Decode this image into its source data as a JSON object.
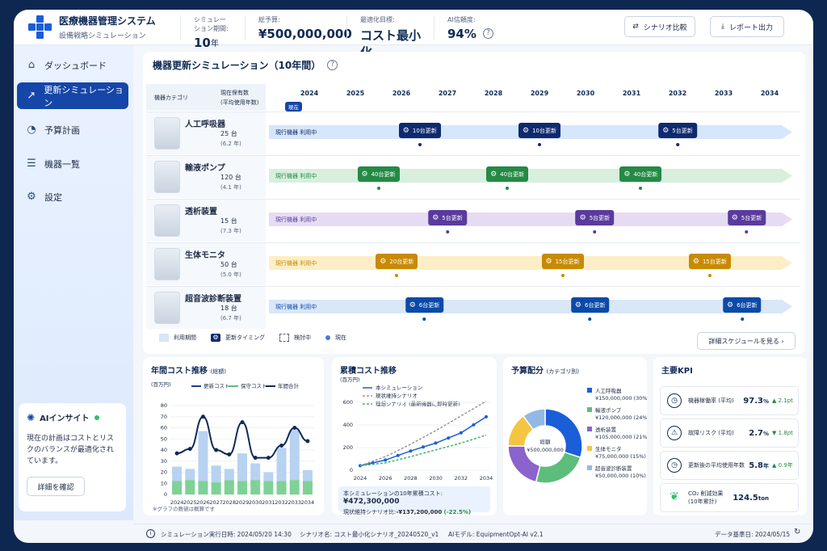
{
  "header": {
    "app_title": "医療機器管理システム",
    "app_subtitle": "設備戦略シミュレーション",
    "stats": [
      {
        "label": "シミュレーション期間:",
        "value": "10",
        "unit": "年"
      },
      {
        "label": "総予算:",
        "value": "¥500,000,000"
      },
      {
        "label": "最適化目標:",
        "value": "コスト最小化"
      },
      {
        "label": "AI信頼度:",
        "value": "94%"
      }
    ],
    "compare_label": "シナリオ比較",
    "report_label": "レポート出力"
  },
  "sidebar": {
    "items": [
      {
        "label": "ダッシュボード",
        "icon": "home-icon"
      },
      {
        "label": "更新シミュレーション",
        "icon": "chart-line-icon",
        "active": true
      },
      {
        "label": "予算計画",
        "icon": "pie-icon"
      },
      {
        "label": "機器一覧",
        "icon": "list-icon"
      },
      {
        "label": "設定",
        "icon": "gear-icon"
      }
    ],
    "ai": {
      "title": "AIインサイト",
      "body": "現在の計画はコストとリスクのバランスが最適化されています。",
      "button": "詳細を確認"
    }
  },
  "timeline": {
    "title": "機器更新シミュレーション（10年間）",
    "col_category": "機器カテゴリ",
    "col_count": "現在保有数",
    "col_count_sub": "(平均使用年数)",
    "years": [
      "2024",
      "2025",
      "2026",
      "2027",
      "2028",
      "2029",
      "2030",
      "2031",
      "2032",
      "2033",
      "2034"
    ],
    "now_label": "現在",
    "bar_label": "現行機器  利用中",
    "rows": [
      {
        "name": "人工呼吸器",
        "count": "25  台",
        "avg": "(6.2 年)",
        "color": "#0f2a6e",
        "bar": "#d6e6fb",
        "events": [
          {
            "label": "10台更新",
            "year": 2026.4
          },
          {
            "label": "10台更新",
            "year": 2029
          },
          {
            "label": "5台更新",
            "year": 2032
          }
        ]
      },
      {
        "name": "輸液ポンプ",
        "count": "120  台",
        "avg": "(4.1 年)",
        "color": "#248a45",
        "bar": "#d8efde",
        "events": [
          {
            "label": "40台更新",
            "year": 2025.5
          },
          {
            "label": "40台更新",
            "year": 2028.3
          },
          {
            "label": "40台更新",
            "year": 2031.2
          }
        ]
      },
      {
        "name": "透析装置",
        "count": "15  台",
        "avg": "(7.3 年)",
        "color": "#5a3a9e",
        "bar": "#e5dcf3",
        "events": [
          {
            "label": "5台更新",
            "year": 2027
          },
          {
            "label": "5台更新",
            "year": 2030.2
          },
          {
            "label": "5台更新",
            "year": 2033.5
          }
        ]
      },
      {
        "name": "生体モニタ",
        "count": "50  台",
        "avg": "(5.0 年)",
        "color": "#c88a00",
        "bar": "#fdeec7",
        "events": [
          {
            "label": "20台更新",
            "year": 2025.9
          },
          {
            "label": "15台更新",
            "year": 2029.5
          },
          {
            "label": "15台更新",
            "year": 2032.7
          }
        ]
      },
      {
        "name": "超音波診断装置",
        "count": "18  台",
        "avg": "(6.7 年)",
        "color": "#0b4aa8",
        "bar": "#d9e7f8",
        "events": [
          {
            "label": "6台更新",
            "year": 2026.5
          },
          {
            "label": "6台更新",
            "year": 2030.1
          },
          {
            "label": "6台更新",
            "year": 2033.4
          }
        ]
      }
    ],
    "legend": [
      "利用期間",
      "更新タイミング",
      "検討中",
      "現在"
    ],
    "detail_button": "詳細スケジュールを見る  ›"
  },
  "annual": {
    "title": "年間コスト推移",
    "title_sub": "(総額)",
    "unit": "(百万円)",
    "legend": [
      "更新コスト",
      "保守コスト",
      "年間合計"
    ],
    "note": "※グラフの数値は概算です"
  },
  "cumulative": {
    "title": "累積コスト推移",
    "unit": "(百万円)",
    "legend": [
      "本シミュレーション",
      "現状維持シナリオ",
      "理想シナリオ (最新機器に即時更新)"
    ],
    "summary_label": "本シミュレーションの10年累積コスト:",
    "summary_value": "¥472,300,000",
    "diff_label": "現状維持シナリオ比:",
    "diff_value": "-¥137,200,000",
    "diff_pct": "(-22.5%)"
  },
  "budget": {
    "title": "予算配分",
    "title_sub": "(カテゴリ別)",
    "center_label": "総額",
    "center_value": "¥500,000,000",
    "items": [
      {
        "name": "人工呼吸器",
        "amount": "¥150,000,000 (30%)"
      },
      {
        "name": "輸液ポンプ",
        "amount": "¥120,000,000 (24%)"
      },
      {
        "name": "透析装置",
        "amount": "¥105,000,000 (21%)"
      },
      {
        "name": "生体モニタ",
        "amount": "¥75,000,000 (15%)"
      },
      {
        "name": "超音波診断装置",
        "amount": "¥50,000,000 (10%)"
      }
    ]
  },
  "kpi": {
    "title": "主要KPI",
    "items": [
      {
        "label": "機器稼働率 (平均)",
        "value": "97.3",
        "unit": "%",
        "delta": "▲ 2.1pt",
        "up": true
      },
      {
        "label": "故障リスク (平均)",
        "value": "2.7",
        "unit": "%",
        "delta": "▼ 1.8pt",
        "up": false
      },
      {
        "label": "更新後の平均使用年数",
        "value": "5.8",
        "unit": "年",
        "delta": "▲ 0.9年",
        "up": true
      },
      {
        "label": "CO₂ 削減効果 (10年累計)",
        "value": "124.5",
        "unit": "ton",
        "delta": "",
        "up": true
      }
    ]
  },
  "footer": {
    "run": "シミュレーション実行日時:  2024/05/20 14:30",
    "scenario": "シナリオ名:  コスト最小化シナリオ_20240520_v1",
    "model": "AIモデル:  EquipmentOpt-AI v2.1",
    "date": "データ基準日:  2024/05/15"
  },
  "chart_data": [
    {
      "type": "bar",
      "title": "年間コスト推移",
      "categories": [
        "2024",
        "2025",
        "2026",
        "2027",
        "2028",
        "2029",
        "2030",
        "2031",
        "2032",
        "2033",
        "2034"
      ],
      "ylim": [
        0,
        80
      ],
      "yticks": [
        0,
        10,
        20,
        30,
        40,
        50,
        60,
        70,
        80
      ],
      "series": [
        {
          "name": "更新コスト",
          "values": [
            13,
            10,
            45,
            15,
            10,
            25,
            15,
            8,
            30,
            45,
            10
          ]
        },
        {
          "name": "保守コスト",
          "values": [
            12,
            13,
            12,
            11,
            13,
            12,
            13,
            12,
            12,
            13,
            12
          ]
        },
        {
          "name": "年間合計",
          "values": [
            37,
            41,
            70,
            40,
            36,
            65,
            33,
            33,
            44,
            60,
            48
          ]
        }
      ]
    },
    {
      "type": "line",
      "title": "累積コスト推移",
      "x": [
        "2024",
        "2026",
        "2028",
        "2030",
        "2032",
        "2034"
      ],
      "ylim": [
        0,
        600
      ],
      "yticks": [
        0,
        200,
        400,
        600
      ],
      "series": [
        {
          "name": "本シミュレーション",
          "values": [
            40,
            90,
            170,
            240,
            330,
            472
          ]
        },
        {
          "name": "現状維持シナリオ",
          "values": [
            40,
            120,
            230,
            350,
            480,
            610
          ]
        },
        {
          "name": "理想シナリオ (最新機器に即時更新)",
          "values": [
            40,
            65,
            120,
            180,
            240,
            310
          ]
        }
      ]
    },
    {
      "type": "pie",
      "title": "予算配分",
      "labels": [
        "人工呼吸器",
        "輸液ポンプ",
        "透析装置",
        "生体モニタ",
        "超音波診断装置"
      ],
      "values": [
        30,
        24,
        21,
        15,
        10
      ],
      "colors": [
        "#1a5ed8",
        "#5cbe7a",
        "#8a63cc",
        "#f5c542",
        "#93b8e6"
      ]
    }
  ]
}
